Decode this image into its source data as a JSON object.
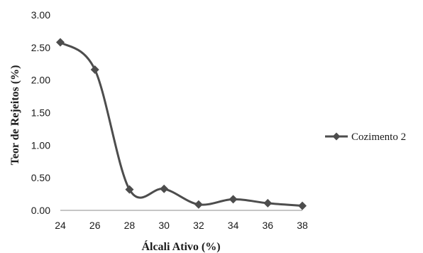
{
  "chart_data": {
    "type": "line",
    "x": [
      24,
      26,
      28,
      30,
      32,
      34,
      36,
      38
    ],
    "series": [
      {
        "name": "Cozimento 2",
        "values": [
          2.58,
          2.16,
          0.32,
          0.33,
          0.09,
          0.17,
          0.11,
          0.07
        ]
      }
    ],
    "xticks": [
      "24",
      "26",
      "28",
      "30",
      "32",
      "34",
      "36",
      "38"
    ],
    "yticks": [
      "0.00",
      "0.50",
      "1.00",
      "1.50",
      "2.00",
      "2.50",
      "3.00"
    ],
    "xlim": [
      24,
      38
    ],
    "ylim": [
      0,
      3
    ],
    "xlabel": "Álcali Ativo (%)",
    "ylabel": "Teor de Rejeitos (%)",
    "grid": false,
    "legend_position": "right",
    "line_color": "#4d4d4d",
    "marker": "diamond"
  }
}
